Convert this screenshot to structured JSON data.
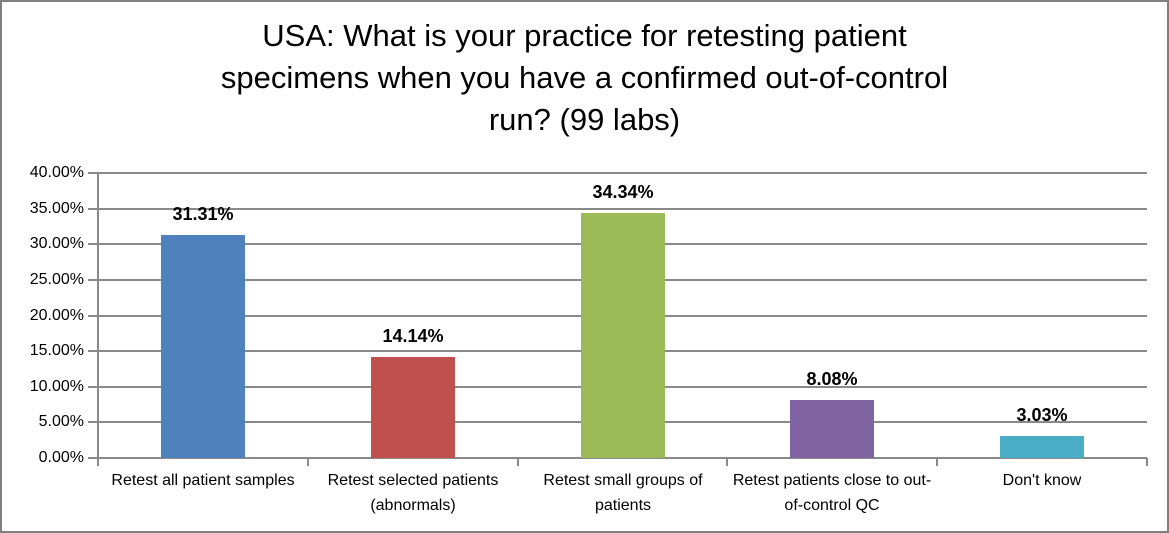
{
  "window": {
    "background": "#FFFFFF",
    "border_color": "#808080"
  },
  "chart_data": {
    "type": "bar",
    "title": "USA: What is your practice for retesting patient specimens when you have a confirmed out-of-control run? (99 labs)",
    "title_lines": [
      "USA: What is your practice for retesting patient",
      "specimens when you have a confirmed out-of-control",
      "run? (99 labs)"
    ],
    "categories": [
      "Retest all patient samples",
      "Retest selected patients (abnormals)",
      "Retest small groups of patients",
      "Retest patients close to out-of-control QC",
      "Don't know"
    ],
    "values": [
      31.31,
      14.14,
      34.34,
      8.08,
      3.03
    ],
    "data_labels": [
      "31.31%",
      "14.14%",
      "34.34%",
      "8.08%",
      "3.03%"
    ],
    "bar_colors": [
      "#4F81BD",
      "#C0504D",
      "#9BBB59",
      "#8064A2",
      "#4BACC6"
    ],
    "xlabel": "",
    "ylabel": "",
    "ylim": [
      0,
      40
    ],
    "y_ticks": [
      "40.00%",
      "35.00%",
      "30.00%",
      "25.00%",
      "20.00%",
      "15.00%",
      "10.00%",
      "5.00%",
      "0.00%"
    ],
    "y_tick_values": [
      40,
      35,
      30,
      25,
      20,
      15,
      10,
      5,
      0
    ],
    "grid": "horizontal",
    "gridline_color": "#8A8A8A",
    "axis_color": "#8A8A8A",
    "legend": "none"
  }
}
